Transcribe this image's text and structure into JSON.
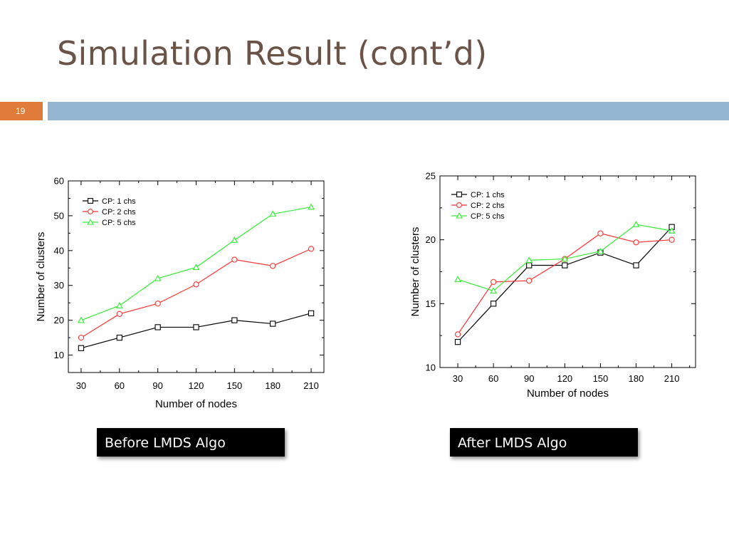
{
  "slide": {
    "title": "Simulation Result (cont’d)",
    "page_number": "19",
    "accent_color": "#e07b39",
    "bar_color": "#94b6d2",
    "title_color": "#6b5447"
  },
  "captions": {
    "left": "Before LMDS Algo",
    "right": "After LMDS Algo"
  },
  "chart_data": [
    {
      "type": "line",
      "xlabel": "Number of nodes",
      "ylabel": "Number of clusters",
      "x": [
        30,
        60,
        90,
        120,
        150,
        180,
        210
      ],
      "xlim": [
        20,
        220
      ],
      "ylim": [
        5,
        60
      ],
      "yticks": [
        10,
        20,
        30,
        40,
        50,
        60
      ],
      "legend_position": "top-left",
      "grid": false,
      "series": [
        {
          "name": "CP: 1 chs",
          "marker": "square",
          "color": "#000000",
          "values": [
            12,
            15,
            18,
            18,
            20,
            19,
            22
          ]
        },
        {
          "name": "CP: 2 chs",
          "marker": "circle",
          "color": "#ff3333",
          "values": [
            15,
            21.8,
            24.8,
            30.3,
            37.4,
            35.6,
            40.5
          ]
        },
        {
          "name": "CP: 5 chs",
          "marker": "triangle",
          "color": "#33ee33",
          "values": [
            20,
            24.2,
            32,
            35.2,
            43,
            50.5,
            52.5
          ]
        }
      ]
    },
    {
      "type": "line",
      "xlabel": "Number of nodes",
      "ylabel": "Number of clusters",
      "x": [
        30,
        60,
        90,
        120,
        150,
        180,
        210
      ],
      "xlim": [
        15,
        230
      ],
      "ylim": [
        10,
        25
      ],
      "yticks": [
        10,
        15,
        20,
        25
      ],
      "legend_position": "top-left",
      "grid": false,
      "series": [
        {
          "name": "CP: 1 chs",
          "marker": "square",
          "color": "#000000",
          "values": [
            12,
            15,
            18,
            18,
            19,
            18,
            21
          ]
        },
        {
          "name": "CP: 2 chs",
          "marker": "circle",
          "color": "#ff3333",
          "values": [
            12.6,
            16.7,
            16.8,
            18.5,
            20.5,
            19.8,
            20
          ]
        },
        {
          "name": "CP: 5 chs",
          "marker": "triangle",
          "color": "#33ee33",
          "values": [
            16.9,
            16,
            18.4,
            18.5,
            19.1,
            21.2,
            20.7
          ]
        }
      ]
    }
  ]
}
